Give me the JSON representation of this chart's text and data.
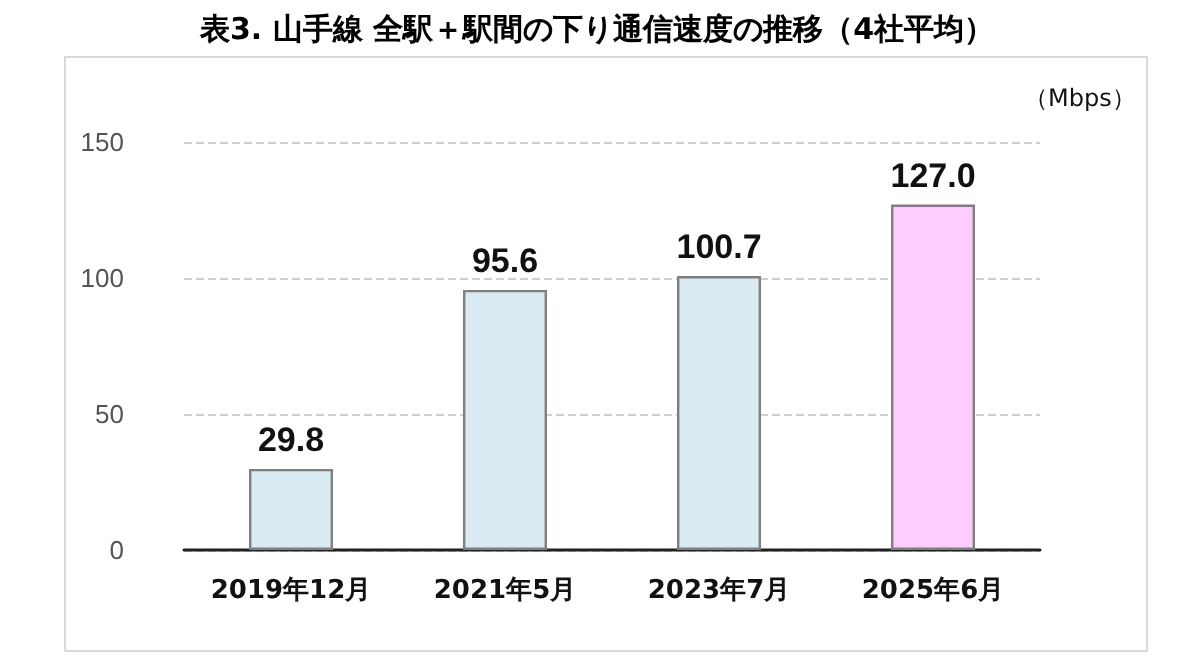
{
  "chart_data": {
    "type": "bar",
    "title": "表3. 山手線 全駅＋駅間の下り通信速度の推移（4社平均）",
    "ylabel": "（Mbps）",
    "categories": [
      "2019年12月",
      "2021年5月",
      "2023年7月",
      "2025年6月"
    ],
    "values": [
      29.8,
      95.6,
      100.7,
      127.0
    ],
    "value_labels": [
      "29.8",
      "95.6",
      "100.7",
      "127.0"
    ],
    "colors": [
      "#daeaf3",
      "#daeaf3",
      "#daeaf3",
      "#ffccff"
    ],
    "ylim": [
      0,
      150
    ],
    "yticks": [
      0,
      50,
      100,
      150
    ],
    "grid": "y"
  }
}
